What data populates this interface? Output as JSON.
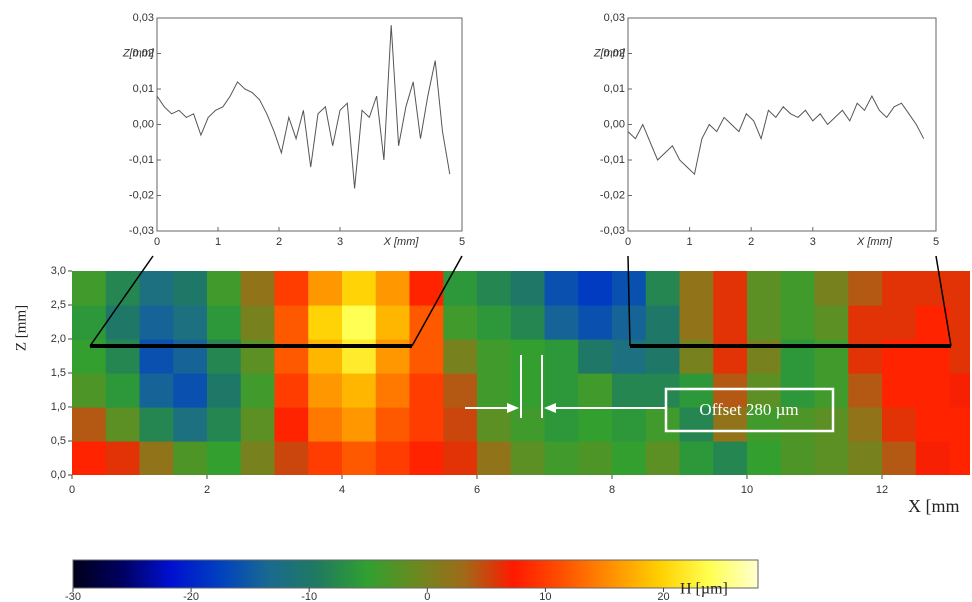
{
  "chart_data": [
    {
      "type": "line",
      "y_label": "Z[mm]",
      "x_label": "X [mm]",
      "x": [
        0,
        0.12,
        0.24,
        0.36,
        0.48,
        0.6,
        0.72,
        0.84,
        0.96,
        1.08,
        1.2,
        1.32,
        1.44,
        1.56,
        1.68,
        1.8,
        1.92,
        2.04,
        2.16,
        2.28,
        2.4,
        2.52,
        2.64,
        2.76,
        2.88,
        3.0,
        3.12,
        3.24,
        3.36,
        3.48,
        3.6,
        3.72,
        3.84,
        3.96,
        4.08,
        4.2,
        4.32,
        4.44,
        4.56,
        4.68,
        4.8
      ],
      "series": [
        {
          "color": "#555555",
          "values": [
            0.008,
            0.005,
            0.003,
            0.004,
            0.002,
            0.003,
            -0.003,
            0.002,
            0.004,
            0.005,
            0.008,
            0.012,
            0.01,
            0.009,
            0.007,
            0.003,
            -0.002,
            -0.008,
            0.002,
            -0.004,
            0.004,
            -0.012,
            0.003,
            0.005,
            -0.006,
            0.004,
            0.006,
            -0.018,
            0.004,
            0.002,
            0.008,
            -0.01,
            0.028,
            -0.006,
            0.005,
            0.012,
            -0.004,
            0.008,
            0.018,
            -0.002,
            -0.014
          ]
        }
      ],
      "xlim": [
        0,
        5
      ],
      "xticks": [
        0,
        1,
        2,
        3,
        5
      ],
      "ylim": [
        -0.03,
        0.03
      ],
      "yticks": [
        {
          "value": 0.03,
          "label": "0,03"
        },
        {
          "value": 0.02,
          "label": "0,02"
        },
        {
          "value": 0.01,
          "label": "0,01"
        },
        {
          "value": 0,
          "label": "0,00"
        },
        {
          "value": -0.01,
          "label": "-0,01"
        },
        {
          "value": -0.02,
          "label": "-0,02"
        },
        {
          "value": -0.03,
          "label": "-0,03"
        }
      ]
    },
    {
      "type": "line",
      "y_label": "Z[mm]",
      "x_label": "X [mm]",
      "x": [
        0,
        0.12,
        0.24,
        0.36,
        0.48,
        0.6,
        0.72,
        0.84,
        0.96,
        1.08,
        1.2,
        1.32,
        1.44,
        1.56,
        1.68,
        1.8,
        1.92,
        2.04,
        2.16,
        2.28,
        2.4,
        2.52,
        2.64,
        2.76,
        2.88,
        3.0,
        3.12,
        3.24,
        3.36,
        3.48,
        3.6,
        3.72,
        3.84,
        3.96,
        4.08,
        4.2,
        4.32,
        4.44,
        4.56,
        4.68,
        4.8
      ],
      "series": [
        {
          "color": "#555555",
          "values": [
            -0.002,
            -0.004,
            0,
            -0.005,
            -0.01,
            -0.008,
            -0.006,
            -0.01,
            -0.012,
            -0.014,
            -0.004,
            0,
            -0.002,
            0.002,
            0,
            -0.002,
            0.003,
            0.001,
            -0.004,
            0.004,
            0.002,
            0.005,
            0.003,
            0.002,
            0.004,
            0.001,
            0.003,
            0,
            0.002,
            0.004,
            0.001,
            0.006,
            0.004,
            0.008,
            0.004,
            0.002,
            0.005,
            0.006,
            0.003,
            0,
            -0.004
          ]
        }
      ],
      "xlim": [
        0,
        5
      ],
      "xticks": [
        0,
        1,
        2,
        3,
        5
      ],
      "ylim": [
        -0.03,
        0.03
      ],
      "yticks": [
        {
          "value": 0.03,
          "label": "0,03"
        },
        {
          "value": 0.02,
          "label": "0,02"
        },
        {
          "value": 0.01,
          "label": "0,01"
        },
        {
          "value": 0,
          "label": "0,00"
        },
        {
          "value": -0.01,
          "label": "-0,01"
        },
        {
          "value": -0.02,
          "label": "-0,02"
        },
        {
          "value": -0.03,
          "label": "-0,03"
        }
      ]
    },
    {
      "type": "heatmap",
      "x_label": "X [mm",
      "y_label": "Z [mm]",
      "annotation": "Offset 280 µm",
      "x": [
        0.25,
        0.75,
        1.25,
        1.75,
        2.25,
        2.75,
        3.25,
        3.75,
        4.25,
        4.75,
        5.25,
        5.75,
        6.25,
        6.75,
        7.25,
        7.75,
        8.25,
        8.75,
        9.25,
        9.75,
        10.25,
        10.75,
        11.25,
        11.75,
        12.25,
        12.75,
        13.25
      ],
      "y": [
        0.25,
        0.75,
        1.25,
        1.75,
        2.25,
        2.75
      ],
      "z": [
        [
          8,
          6,
          2,
          -3,
          -5,
          0,
          5,
          10,
          12,
          10,
          8,
          6,
          2,
          -2,
          -4,
          -3,
          -5,
          -2,
          -6,
          -8,
          -5,
          -3,
          -2,
          0,
          4,
          7,
          8
        ],
        [
          4,
          -2,
          -8,
          -12,
          -8,
          -2,
          8,
          14,
          16,
          12,
          10,
          5,
          -2,
          -4,
          -6,
          -5,
          -6,
          -4,
          -8,
          2,
          -4,
          -3,
          -2,
          2,
          6,
          8,
          8
        ],
        [
          -3,
          -6,
          -14,
          -16,
          -10,
          -4,
          10,
          16,
          18,
          14,
          10,
          4,
          -4,
          -5,
          -6,
          -4,
          -8,
          -8,
          -6,
          4,
          -2,
          -6,
          -4,
          4,
          8,
          8,
          7
        ],
        [
          -5,
          -8,
          -16,
          -14,
          -8,
          -2,
          12,
          18,
          22,
          16,
          12,
          0,
          -4,
          -5,
          -6,
          -10,
          -12,
          -10,
          0,
          6,
          0,
          -6,
          -4,
          6,
          8,
          8,
          6
        ],
        [
          -6,
          -10,
          -14,
          -12,
          -6,
          0,
          12,
          20,
          24,
          18,
          12,
          -4,
          -6,
          -8,
          -14,
          -16,
          -14,
          -10,
          2,
          6,
          -2,
          -4,
          -2,
          6,
          6,
          8,
          6
        ],
        [
          -4,
          -8,
          -12,
          -10,
          -4,
          2,
          10,
          16,
          20,
          16,
          8,
          -6,
          -8,
          -10,
          -16,
          -18,
          -16,
          -8,
          2,
          6,
          -2,
          -4,
          0,
          4,
          6,
          6,
          6
        ]
      ],
      "xlim": [
        0,
        13.3
      ],
      "xticks": [
        0,
        2,
        4,
        6,
        8,
        10,
        12
      ],
      "ylim": [
        0,
        3
      ],
      "yticks": [
        {
          "value": 0,
          "label": "0,0"
        },
        {
          "value": 0.5,
          "label": "0,5"
        },
        {
          "value": 1,
          "label": "1,0"
        },
        {
          "value": 1.5,
          "label": "1,5"
        },
        {
          "value": 2,
          "label": "2,0"
        },
        {
          "value": 2.5,
          "label": "2,5"
        },
        {
          "value": 3,
          "label": "3,0"
        }
      ],
      "colorbar": {
        "label": "H [µm]",
        "lim": [
          -30,
          28
        ],
        "ticks": [
          -30,
          -20,
          -10,
          0,
          10,
          20
        ],
        "colors": [
          "#00001a",
          "#000060",
          "#0010d0",
          "#0040c0",
          "#1a6a90",
          "#207a60",
          "#30a030",
          "#6a8a20",
          "#a06a18",
          "#ff1a00",
          "#ff5000",
          "#ff9000",
          "#ffd000",
          "#ffff50",
          "#ffffd0"
        ]
      }
    }
  ]
}
